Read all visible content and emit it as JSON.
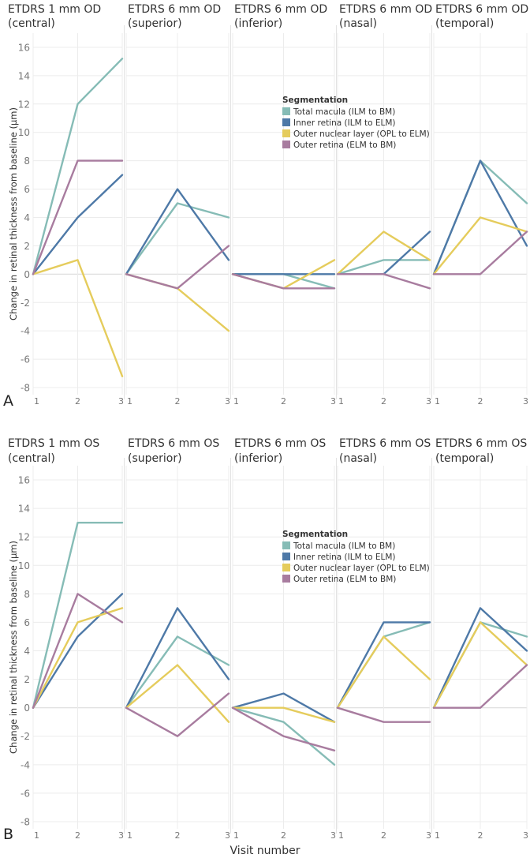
{
  "figure": {
    "x_axis_label": "Visit number",
    "y_axis_label": "Change in retinal thickness from baseline (μm)"
  },
  "colors": {
    "total_macula": "#86bcb6",
    "inner_retina": "#4e79a7",
    "outer_nuclear": "#e5cc5c",
    "outer_retina": "#a87c9f",
    "grid": "#ececec",
    "zero_line": "#dcdcdc",
    "panel_divider": "#e2e2e2",
    "text": "#333333",
    "tick_text": "#777777"
  },
  "chart_data": [
    {
      "type": "line",
      "panel_label": "A",
      "eye": "OD",
      "title_lines": [
        [
          "ETDRS 1 mm OD",
          "(central)"
        ],
        [
          "ETDRS 6 mm OD",
          "(superior)"
        ],
        [
          "ETDRS 6 mm OD",
          "(inferior)"
        ],
        [
          "ETDRS 6 mm OD",
          "(nasal)"
        ],
        [
          "ETDRS 6 mm OD",
          "(temporal)"
        ]
      ],
      "x": [
        1,
        2,
        3
      ],
      "xlim": [
        1,
        3
      ],
      "ylim": [
        -8.5,
        17
      ],
      "y_ticks": [
        -8,
        -6,
        -4,
        -2,
        0,
        2,
        4,
        6,
        8,
        10,
        12,
        14,
        16
      ],
      "legend": {
        "title": "Segmentation",
        "position": "middle",
        "entries": [
          "Total macula (ILM to BM)",
          "Inner retina (ILM to ELM)",
          "Outer nuclear layer (OPL to ELM)",
          "Outer retina (ELM to BM)"
        ]
      },
      "subplots": [
        {
          "name": "central",
          "series": [
            {
              "name": "Total macula (ILM to BM)",
              "values": [
                0,
                12,
                15.2
              ]
            },
            {
              "name": "Inner retina (ILM to ELM)",
              "values": [
                0,
                4,
                7
              ]
            },
            {
              "name": "Outer nuclear layer (OPL to ELM)",
              "values": [
                0,
                1,
                -7.2
              ]
            },
            {
              "name": "Outer retina (ELM to BM)",
              "values": [
                0,
                8,
                8
              ]
            }
          ]
        },
        {
          "name": "superior",
          "series": [
            {
              "name": "Total macula (ILM to BM)",
              "values": [
                0,
                5,
                4
              ]
            },
            {
              "name": "Inner retina (ILM to ELM)",
              "values": [
                0,
                6,
                1
              ]
            },
            {
              "name": "Outer nuclear layer (OPL to ELM)",
              "values": [
                0,
                -1,
                -4
              ]
            },
            {
              "name": "Outer retina (ELM to BM)",
              "values": [
                0,
                -1,
                2
              ]
            }
          ]
        },
        {
          "name": "inferior",
          "series": [
            {
              "name": "Total macula (ILM to BM)",
              "values": [
                0,
                0,
                -1
              ]
            },
            {
              "name": "Inner retina (ILM to ELM)",
              "values": [
                0,
                0,
                0
              ]
            },
            {
              "name": "Outer nuclear layer (OPL to ELM)",
              "values": [
                0,
                -1,
                1
              ]
            },
            {
              "name": "Outer retina (ELM to BM)",
              "values": [
                0,
                -1,
                -1
              ]
            }
          ]
        },
        {
          "name": "nasal",
          "series": [
            {
              "name": "Total macula (ILM to BM)",
              "values": [
                0,
                1,
                1
              ]
            },
            {
              "name": "Inner retina (ILM to ELM)",
              "values": [
                0,
                0,
                3
              ]
            },
            {
              "name": "Outer nuclear layer (OPL to ELM)",
              "values": [
                0,
                3,
                1
              ]
            },
            {
              "name": "Outer retina (ELM to BM)",
              "values": [
                0,
                0,
                -1
              ]
            }
          ]
        },
        {
          "name": "temporal",
          "series": [
            {
              "name": "Total macula (ILM to BM)",
              "values": [
                0,
                8,
                5
              ]
            },
            {
              "name": "Inner retina (ILM to ELM)",
              "values": [
                0,
                8,
                2
              ]
            },
            {
              "name": "Outer nuclear layer (OPL to ELM)",
              "values": [
                0,
                4,
                3
              ]
            },
            {
              "name": "Outer retina (ELM to BM)",
              "values": [
                0,
                0,
                3
              ]
            }
          ]
        }
      ]
    },
    {
      "type": "line",
      "panel_label": "B",
      "eye": "OS",
      "title_lines": [
        [
          "ETDRS 1 mm OS",
          "(central)"
        ],
        [
          "ETDRS 6 mm OS",
          "(superior)"
        ],
        [
          "ETDRS 6 mm OS",
          "(inferior)"
        ],
        [
          "ETDRS 6 mm OS",
          "(nasal)"
        ],
        [
          "ETDRS 6 mm OS",
          "(temporal)"
        ]
      ],
      "x": [
        1,
        2,
        3
      ],
      "xlim": [
        1,
        3
      ],
      "ylim": [
        -8.5,
        17
      ],
      "y_ticks": [
        -8,
        -6,
        -4,
        -2,
        0,
        2,
        4,
        6,
        8,
        10,
        12,
        14,
        16
      ],
      "legend": {
        "title": "Segmentation",
        "position": "middle",
        "entries": [
          "Total macula (ILM to BM)",
          "Inner retina (ILM to ELM)",
          "Outer nuclear layer (OPL to ELM)",
          "Outer retina (ELM to BM)"
        ]
      },
      "subplots": [
        {
          "name": "central",
          "series": [
            {
              "name": "Total macula (ILM to BM)",
              "values": [
                0,
                13,
                13
              ]
            },
            {
              "name": "Inner retina (ILM to ELM)",
              "values": [
                0,
                5,
                8
              ]
            },
            {
              "name": "Outer nuclear layer (OPL to ELM)",
              "values": [
                0,
                6,
                7
              ]
            },
            {
              "name": "Outer retina (ELM to BM)",
              "values": [
                0,
                8,
                6
              ]
            }
          ]
        },
        {
          "name": "superior",
          "series": [
            {
              "name": "Total macula (ILM to BM)",
              "values": [
                0,
                5,
                3
              ]
            },
            {
              "name": "Inner retina (ILM to ELM)",
              "values": [
                0,
                7,
                2
              ]
            },
            {
              "name": "Outer nuclear layer (OPL to ELM)",
              "values": [
                0,
                3,
                -1
              ]
            },
            {
              "name": "Outer retina (ELM to BM)",
              "values": [
                0,
                -2,
                1
              ]
            }
          ]
        },
        {
          "name": "inferior",
          "series": [
            {
              "name": "Total macula (ILM to BM)",
              "values": [
                0,
                -1,
                -4
              ]
            },
            {
              "name": "Inner retina (ILM to ELM)",
              "values": [
                0,
                1,
                -1
              ]
            },
            {
              "name": "Outer nuclear layer (OPL to ELM)",
              "values": [
                0,
                0,
                -1
              ]
            },
            {
              "name": "Outer retina (ELM to BM)",
              "values": [
                0,
                -2,
                -3
              ]
            }
          ]
        },
        {
          "name": "nasal",
          "series": [
            {
              "name": "Total macula (ILM to BM)",
              "values": [
                0,
                5,
                6
              ]
            },
            {
              "name": "Inner retina (ILM to ELM)",
              "values": [
                0,
                6,
                6
              ]
            },
            {
              "name": "Outer nuclear layer (OPL to ELM)",
              "values": [
                0,
                5,
                2
              ]
            },
            {
              "name": "Outer retina (ELM to BM)",
              "values": [
                0,
                -1,
                -1
              ]
            }
          ]
        },
        {
          "name": "temporal",
          "series": [
            {
              "name": "Total macula (ILM to BM)",
              "values": [
                0,
                6,
                5
              ]
            },
            {
              "name": "Inner retina (ILM to ELM)",
              "values": [
                0,
                7,
                4
              ]
            },
            {
              "name": "Outer nuclear layer (OPL to ELM)",
              "values": [
                0,
                6,
                3
              ]
            },
            {
              "name": "Outer retina (ELM to BM)",
              "values": [
                0,
                0,
                3
              ]
            }
          ]
        }
      ]
    }
  ]
}
